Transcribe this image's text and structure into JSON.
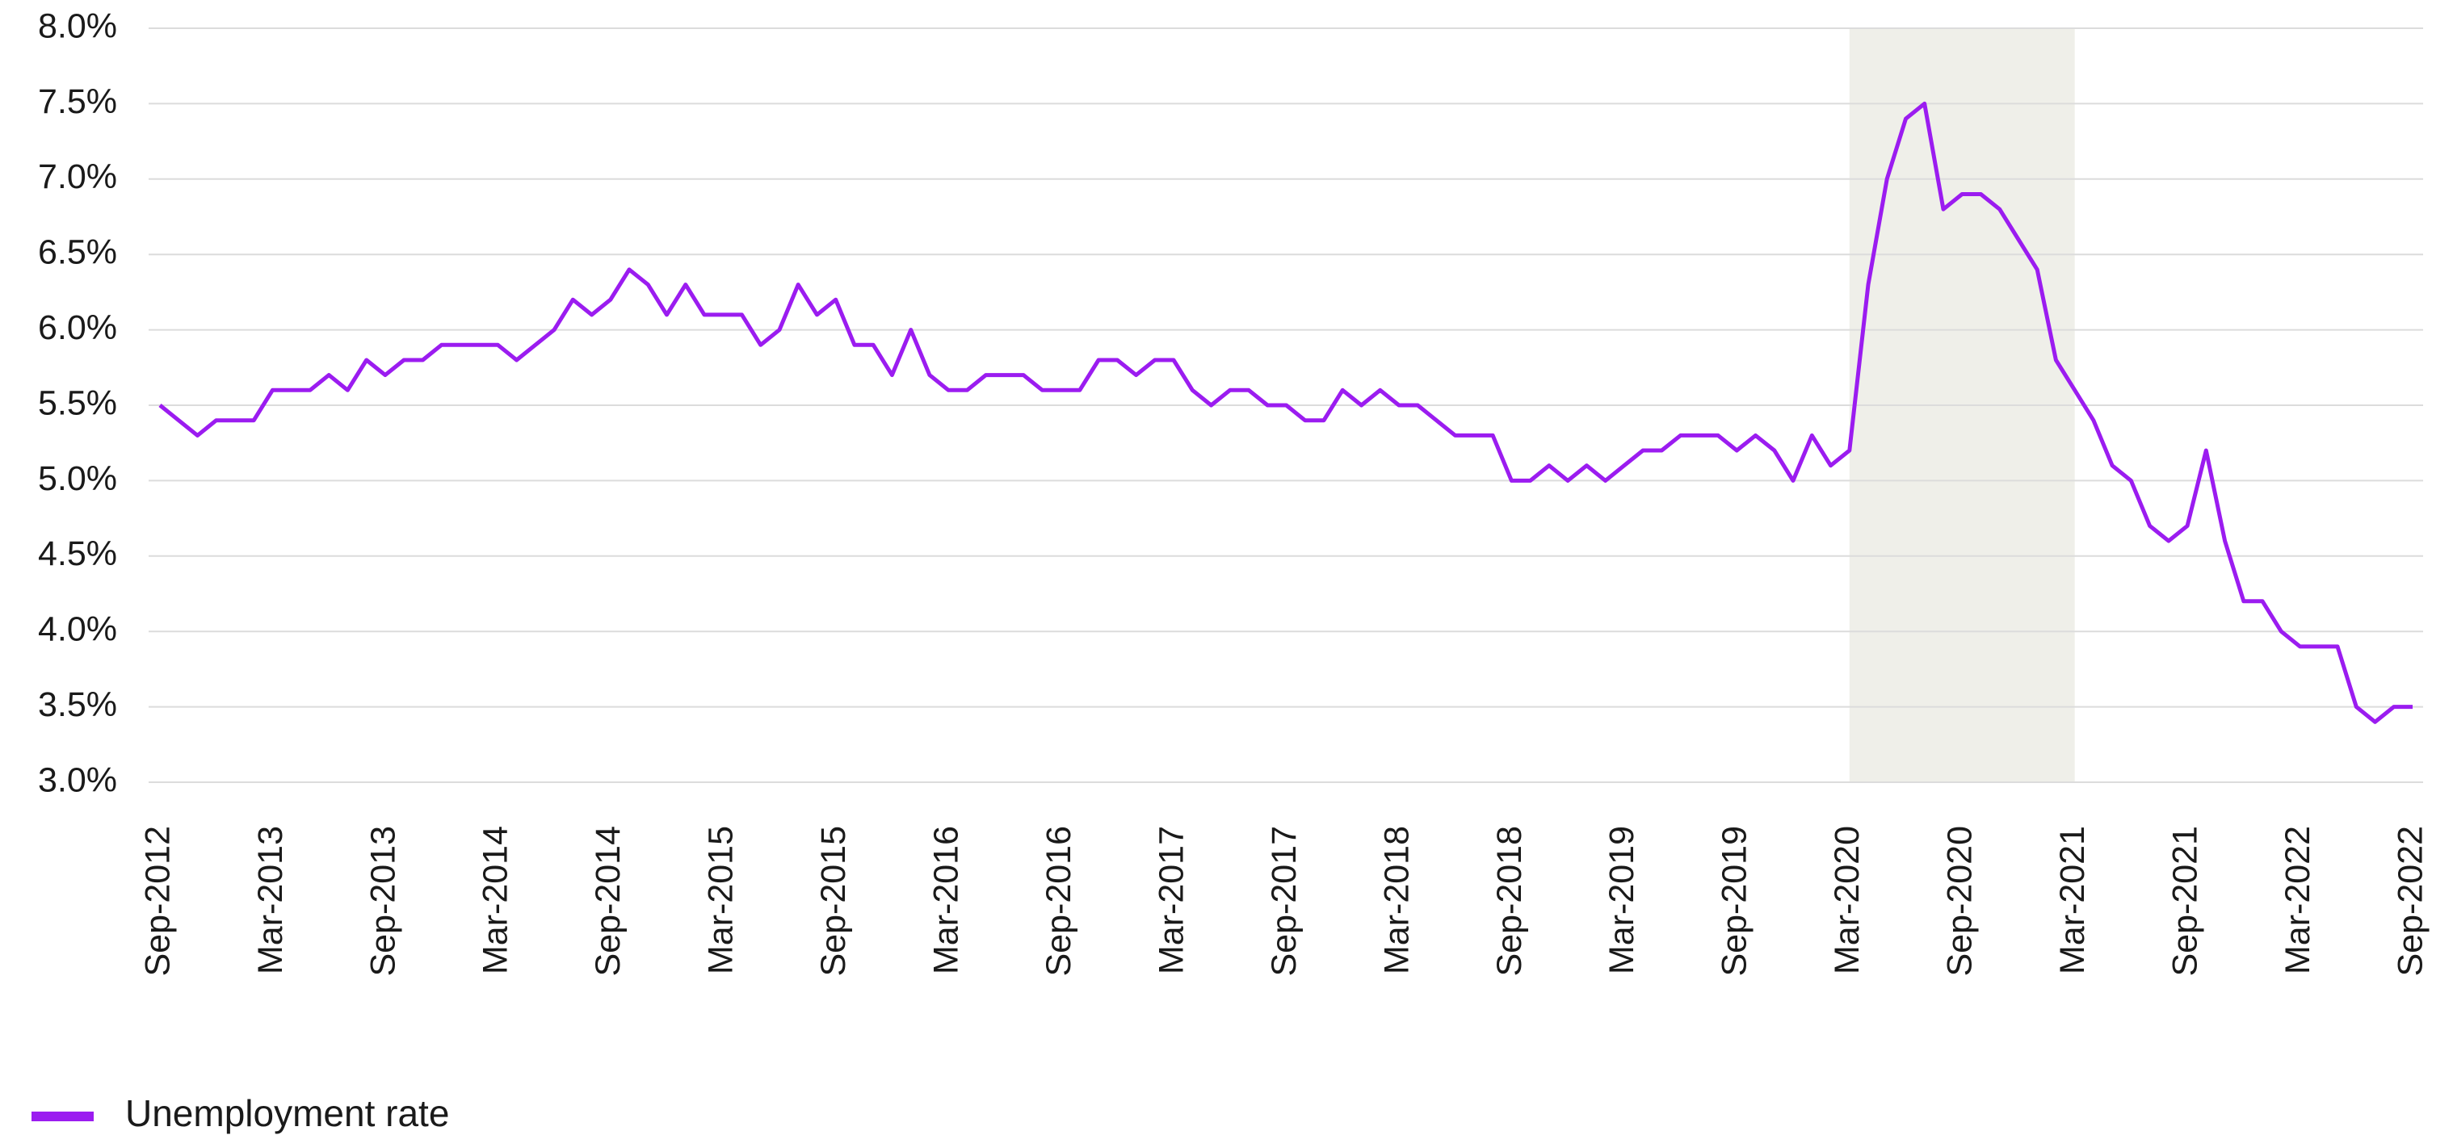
{
  "chart_data": {
    "type": "line",
    "categories": [
      "Sep-2012",
      null,
      null,
      null,
      null,
      null,
      "Mar-2013",
      null,
      null,
      null,
      null,
      null,
      "Sep-2013",
      null,
      null,
      null,
      null,
      null,
      "Mar-2014",
      null,
      null,
      null,
      null,
      null,
      "Sep-2014",
      null,
      null,
      null,
      null,
      null,
      "Mar-2015",
      null,
      null,
      null,
      null,
      null,
      "Sep-2015",
      null,
      null,
      null,
      null,
      null,
      "Mar-2016",
      null,
      null,
      null,
      null,
      null,
      "Sep-2016",
      null,
      null,
      null,
      null,
      null,
      "Mar-2017",
      null,
      null,
      null,
      null,
      null,
      "Sep-2017",
      null,
      null,
      null,
      null,
      null,
      "Mar-2018",
      null,
      null,
      null,
      null,
      null,
      "Sep-2018",
      null,
      null,
      null,
      null,
      null,
      "Mar-2019",
      null,
      null,
      null,
      null,
      null,
      "Sep-2019",
      null,
      null,
      null,
      null,
      null,
      "Mar-2020",
      null,
      null,
      null,
      null,
      null,
      "Sep-2020",
      null,
      null,
      null,
      null,
      null,
      "Mar-2021",
      null,
      null,
      null,
      null,
      null,
      "Sep-2021",
      null,
      null,
      null,
      null,
      null,
      "Mar-2022",
      null,
      null,
      null,
      null,
      null,
      "Sep-2022"
    ],
    "series": [
      {
        "name": "Unemployment rate",
        "color": "#9b1cf0",
        "values": [
          5.5,
          5.4,
          5.3,
          5.4,
          5.4,
          5.4,
          5.6,
          5.6,
          5.6,
          5.7,
          5.6,
          5.8,
          5.7,
          5.8,
          5.8,
          5.9,
          5.9,
          5.9,
          5.9,
          5.8,
          5.9,
          6.0,
          6.2,
          6.1,
          6.2,
          6.4,
          6.3,
          6.1,
          6.3,
          6.1,
          6.1,
          6.1,
          5.9,
          6.0,
          6.3,
          6.1,
          6.2,
          5.9,
          5.9,
          5.7,
          6.0,
          5.7,
          5.6,
          5.6,
          5.7,
          5.7,
          5.7,
          5.6,
          5.6,
          5.6,
          5.8,
          5.8,
          5.7,
          5.8,
          5.8,
          5.6,
          5.5,
          5.6,
          5.6,
          5.5,
          5.5,
          5.4,
          5.4,
          5.6,
          5.5,
          5.6,
          5.5,
          5.5,
          5.4,
          5.3,
          5.3,
          5.3,
          5.0,
          5.0,
          5.1,
          5.0,
          5.1,
          5.0,
          5.1,
          5.2,
          5.2,
          5.3,
          5.3,
          5.3,
          5.2,
          5.3,
          5.2,
          5.0,
          5.3,
          5.1,
          5.2,
          6.3,
          7.0,
          7.4,
          7.5,
          6.8,
          6.9,
          6.9,
          6.8,
          6.6,
          6.4,
          5.8,
          5.6,
          5.4,
          5.1,
          5.0,
          4.7,
          4.6,
          4.7,
          5.2,
          4.6,
          4.2,
          4.2,
          4.0,
          3.9,
          3.9,
          3.9,
          3.5,
          3.4,
          3.5,
          3.5
        ]
      }
    ],
    "ylim": [
      3,
      8
    ],
    "yticks": [
      {
        "value": 3,
        "label": "3.0%"
      },
      {
        "value": 3.5,
        "label": "3.5%"
      },
      {
        "value": 4,
        "label": "4.0%"
      },
      {
        "value": 4.5,
        "label": "4.5%"
      },
      {
        "value": 5,
        "label": "5.0%"
      },
      {
        "value": 5.5,
        "label": "5.5%"
      },
      {
        "value": 6,
        "label": "6.0%"
      },
      {
        "value": 6.5,
        "label": "6.5%"
      },
      {
        "value": 7,
        "label": "7.0%"
      },
      {
        "value": 7.5,
        "label": "7.5%"
      },
      {
        "value": 8,
        "label": "8.0%"
      }
    ],
    "grid": true,
    "shaded_period": {
      "from": "Mar-2020",
      "to": "Mar-2021",
      "color": "#efefe9"
    },
    "legend": "bottom-left"
  }
}
